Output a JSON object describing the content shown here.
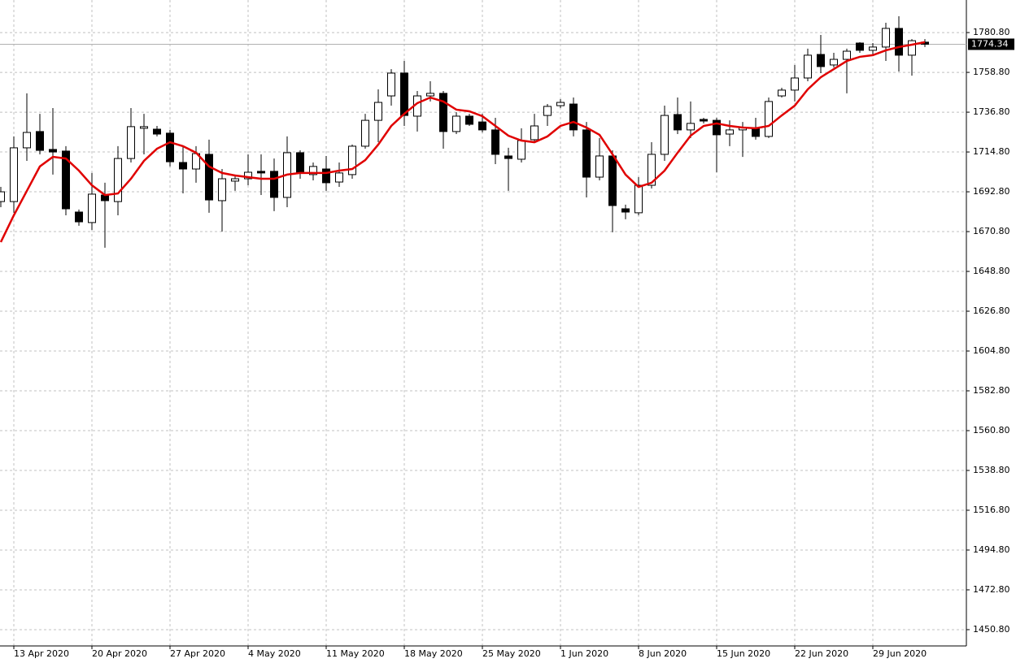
{
  "chart_data": {
    "type": "candlestick",
    "categories": [
      null,
      "13 Apr 2020",
      null,
      null,
      null,
      null,
      null,
      "20 Apr 2020",
      null,
      null,
      null,
      null,
      null,
      "27 Apr 2020",
      null,
      null,
      null,
      null,
      null,
      "4 May 2020",
      null,
      null,
      null,
      null,
      null,
      "11 May 2020",
      null,
      null,
      null,
      null,
      null,
      "18 May 2020",
      null,
      null,
      null,
      null,
      null,
      "25 May 2020",
      null,
      null,
      null,
      null,
      null,
      "1 Jun 2020",
      null,
      null,
      null,
      null,
      null,
      "8 Jun 2020",
      null,
      null,
      null,
      null,
      null,
      "15 Jun 2020",
      null,
      null,
      null,
      null,
      null,
      "22 Jun 2020",
      null,
      null,
      null,
      null,
      null,
      "29 Jun 2020",
      null,
      null,
      null,
      null
    ],
    "open": [
      1687.4,
      1687.4,
      1717.1,
      1726.1,
      1716.2,
      1715.3,
      1681.6,
      1675.8,
      1691.0,
      1687.4,
      1711.2,
      1727.9,
      1727.4,
      1725.2,
      1709.0,
      1705.4,
      1713.5,
      1687.9,
      1698.7,
      1700.0,
      1704.1,
      1704.1,
      1689.7,
      1714.4,
      1702.3,
      1705.4,
      1698.2,
      1702.3,
      1718.0,
      1732.3,
      1745.8,
      1758.4,
      1734.6,
      1745.8,
      1747.2,
      1726.1,
      1734.6,
      1731.4,
      1727.0,
      1712.6,
      1710.8,
      1721.6,
      1735.0,
      1740.4,
      1741.3,
      1727.0,
      1700.9,
      1712.6,
      1683.4,
      1681.2,
      1696.4,
      1713.5,
      1735.5,
      1727.0,
      1732.8,
      1732.3,
      1724.7,
      1727.0,
      1727.9,
      1723.4,
      1745.8,
      1749.0,
      1755.7,
      1768.7,
      1762.9,
      1766.0,
      1775.0,
      1771.0,
      1772.8,
      1783.1,
      1768.3,
      1775.5
    ],
    "high": [
      1695.5,
      1723.4,
      1747.2,
      1735.9,
      1739.1,
      1718.0,
      1683.0,
      1703.2,
      1697.8,
      1718.0,
      1739.1,
      1735.9,
      1729.2,
      1727.0,
      1718.0,
      1718.0,
      1721.6,
      1705.4,
      1702.3,
      1713.5,
      1713.5,
      1711.2,
      1723.4,
      1715.7,
      1709.0,
      1712.6,
      1709.0,
      1718.9,
      1735.9,
      1749.4,
      1760.6,
      1765.1,
      1748.5,
      1753.9,
      1748.5,
      1736.8,
      1735.9,
      1735.9,
      1733.7,
      1717.1,
      1727.9,
      1735.9,
      1741.3,
      1744.0,
      1744.9,
      1731.4,
      1722.5,
      1715.7,
      1685.7,
      1700.9,
      1720.2,
      1740.4,
      1744.9,
      1742.7,
      1733.7,
      1733.7,
      1732.3,
      1731.4,
      1733.7,
      1744.9,
      1750.3,
      1762.9,
      1771.9,
      1779.5,
      1769.6,
      1771.9,
      1775.5,
      1775.0,
      1786.2,
      1789.8,
      1777.2,
      1777.2
    ],
    "low": [
      1684.3,
      1681.2,
      1709.9,
      1713.5,
      1702.3,
      1679.8,
      1674.0,
      1671.7,
      1661.9,
      1679.8,
      1709.0,
      1713.5,
      1723.4,
      1706.8,
      1691.9,
      1697.8,
      1681.2,
      1670.8,
      1693.3,
      1696.4,
      1691.0,
      1682.1,
      1684.3,
      1700.0,
      1699.1,
      1693.3,
      1695.5,
      1700.0,
      1716.6,
      1720.2,
      1740.4,
      1729.2,
      1726.1,
      1742.7,
      1716.6,
      1724.7,
      1729.2,
      1725.6,
      1708.1,
      1693.3,
      1709.0,
      1720.2,
      1729.2,
      1739.1,
      1723.4,
      1689.7,
      1699.1,
      1670.4,
      1677.6,
      1679.8,
      1694.6,
      1709.9,
      1724.7,
      1722.5,
      1730.6,
      1703.6,
      1718.0,
      1712.1,
      1721.6,
      1722.5,
      1744.9,
      1742.7,
      1753.9,
      1758.4,
      1761.5,
      1747.2,
      1769.6,
      1768.3,
      1765.1,
      1759.3,
      1757.0,
      1772.8
    ],
    "close": [
      1692.8,
      1717.1,
      1725.6,
      1715.7,
      1714.8,
      1683.4,
      1676.2,
      1691.5,
      1687.9,
      1711.2,
      1728.8,
      1728.8,
      1724.7,
      1709.4,
      1705.4,
      1713.9,
      1688.3,
      1700.0,
      1700.0,
      1703.6,
      1703.2,
      1689.7,
      1714.4,
      1703.6,
      1706.8,
      1697.8,
      1703.2,
      1718.0,
      1732.3,
      1742.2,
      1758.4,
      1735.0,
      1745.8,
      1747.2,
      1726.1,
      1734.6,
      1730.1,
      1727.0,
      1713.5,
      1711.2,
      1721.1,
      1729.2,
      1740.0,
      1742.2,
      1727.0,
      1700.9,
      1712.6,
      1685.2,
      1681.6,
      1696.4,
      1713.5,
      1735.0,
      1727.0,
      1730.6,
      1731.9,
      1724.3,
      1727.0,
      1728.3,
      1723.4,
      1742.7,
      1749.0,
      1755.7,
      1768.3,
      1762.0,
      1766.0,
      1770.5,
      1771.0,
      1772.8,
      1783.1,
      1768.3,
      1776.3,
      1774.34
    ],
    "up_color": "#ffffff",
    "down_color": "#000000",
    "ma": {
      "color": "#e00000",
      "values": [
        1665.0,
        1679.8,
        1693.3,
        1706.8,
        1712.1,
        1711.2,
        1704.5,
        1696.4,
        1691.0,
        1691.9,
        1700.0,
        1709.9,
        1716.6,
        1720.2,
        1718.0,
        1714.4,
        1706.8,
        1703.2,
        1701.8,
        1700.9,
        1700.0,
        1700.0,
        1702.3,
        1703.2,
        1703.2,
        1703.2,
        1704.5,
        1705.4,
        1710.3,
        1718.9,
        1729.2,
        1735.9,
        1741.8,
        1744.9,
        1742.7,
        1738.2,
        1737.3,
        1734.6,
        1729.2,
        1723.8,
        1721.1,
        1720.2,
        1723.4,
        1729.2,
        1731.4,
        1728.3,
        1724.3,
        1713.5,
        1702.3,
        1695.5,
        1697.8,
        1704.5,
        1714.4,
        1723.8,
        1729.2,
        1730.6,
        1729.2,
        1728.3,
        1727.9,
        1729.2,
        1735.0,
        1740.4,
        1749.4,
        1756.1,
        1760.6,
        1765.1,
        1767.4,
        1768.3,
        1771.0,
        1772.8,
        1774.1,
        1775.5
      ]
    },
    "current_price": 1774.34,
    "ylim": [
      1441.8,
      1798.8
    ],
    "yticks": [
      {
        "value": 1450.8,
        "label": "1450.80"
      },
      {
        "value": 1472.8,
        "label": "1472.80"
      },
      {
        "value": 1494.8,
        "label": "1494.80"
      },
      {
        "value": 1516.8,
        "label": "1516.80"
      },
      {
        "value": 1538.8,
        "label": "1538.80"
      },
      {
        "value": 1560.8,
        "label": "1560.80"
      },
      {
        "value": 1582.8,
        "label": "1582.80"
      },
      {
        "value": 1604.8,
        "label": "1604.80"
      },
      {
        "value": 1626.8,
        "label": "1626.80"
      },
      {
        "value": 1648.8,
        "label": "1648.80"
      },
      {
        "value": 1670.8,
        "label": "1670.80"
      },
      {
        "value": 1692.8,
        "label": "1692.80"
      },
      {
        "value": 1714.8,
        "label": "1714.80"
      },
      {
        "value": 1736.8,
        "label": "1736.80"
      },
      {
        "value": 1758.8,
        "label": "1758.80"
      },
      {
        "value": 1780.8,
        "label": "1780.80"
      }
    ],
    "grid": true
  }
}
